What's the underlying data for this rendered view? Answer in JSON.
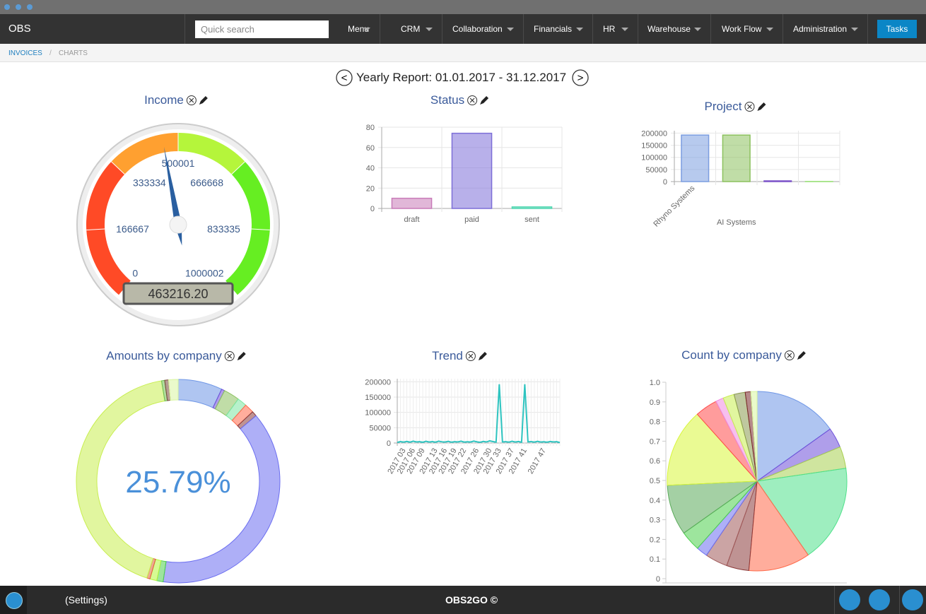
{
  "header": {
    "brand": "OBS",
    "search_placeholder": "Quick search",
    "nav": [
      "Menu",
      "CRM",
      "Collaboration",
      "Financials",
      "HR",
      "Warehouse",
      "Work Flow",
      "Administration"
    ],
    "tasks": "Tasks"
  },
  "breadcrumb": [
    "INVOICES",
    "/",
    "CHARTS"
  ],
  "report": {
    "prev": "<",
    "title": "Yearly Report: 01.01.2017 - 31.12.2017",
    "next": ">"
  },
  "chart_data": [
    {
      "type": "gauge",
      "title": "Income",
      "ylim": [
        0,
        1000002
      ],
      "yticks": [
        0,
        166667,
        333334,
        500001,
        666668,
        833335,
        1000002
      ],
      "bands": [
        {
          "from": 0,
          "to": 333334,
          "color": "#ff4a26"
        },
        {
          "from": 333334,
          "to": 500001,
          "color": "#ffa030"
        },
        {
          "from": 500001,
          "to": 666668,
          "color": "#b5f53b"
        },
        {
          "from": 666668,
          "to": 1000002,
          "color": "#66ee22"
        }
      ],
      "value": 463216.2,
      "value_label": "463216.20",
      "color": "#2a5fa0"
    },
    {
      "type": "bar",
      "title": "Status",
      "categories": [
        "draft",
        "paid",
        "sent"
      ],
      "values": [
        10,
        74,
        1.5
      ],
      "colors": [
        "#c87bb8",
        "#7d6fd8",
        "#4fd6b0"
      ],
      "ylim": [
        0,
        80
      ],
      "yticks": [
        0,
        20,
        40,
        60,
        80
      ],
      "grid": true
    },
    {
      "type": "bar",
      "title": "Project",
      "categories": [
        "Rhyno Systems",
        "AI Systems",
        null,
        null
      ],
      "values": [
        192000,
        192000,
        3000,
        500
      ],
      "colors": [
        "#7c9ee0",
        "#8cc15e",
        "#7b52c8",
        "#9be07a"
      ],
      "ylim": [
        0,
        210000
      ],
      "yticks": [
        0,
        50000,
        100000,
        150000,
        200000
      ],
      "grid": true
    },
    {
      "type": "doughnut",
      "title": "Amounts by company",
      "center_label": "25.79%",
      "values": [
        7,
        0.5,
        2.5,
        1.5,
        1.5,
        0.8,
        38.3,
        1,
        1.1,
        0.5,
        42.2,
        0.5,
        0.6,
        1.5
      ],
      "colors": [
        "#6e96e6",
        "#6d4fd8",
        "#8cc15e",
        "#7be6a0",
        "#ff6a4a",
        "#8b3a3a",
        "#6b6ef0",
        "#4cd04c",
        "#b5f53b",
        "#e0603a",
        "#c8ee50",
        "#6fbf50",
        "#7a4a3a",
        "#d8f5a0"
      ]
    },
    {
      "type": "line",
      "title": "Trend",
      "categories": [
        null,
        null,
        "2017 03",
        null,
        null,
        "2017 06",
        null,
        null,
        "2017 09",
        null,
        null,
        null,
        "2017 13",
        null,
        null,
        "2017 16",
        null,
        null,
        "2017 19",
        null,
        null,
        "2017 22",
        null,
        null,
        null,
        "2017 26",
        null,
        null,
        null,
        "2017 30",
        null,
        null,
        "2017 33",
        null,
        null,
        null,
        "2017 37",
        null,
        null,
        null,
        "2017 41",
        null,
        null,
        null,
        null,
        null,
        "2017 47",
        null,
        null,
        null,
        null,
        null
      ],
      "values": [
        2000,
        4500,
        3000,
        5200,
        2800,
        6000,
        3500,
        4200,
        2500,
        5800,
        3300,
        4700,
        2600,
        6100,
        3900,
        3100,
        5400,
        2700,
        4400,
        3600,
        5900,
        2900,
        4100,
        3200,
        6300,
        3800,
        2400,
        5100,
        3400,
        7200,
        4600,
        3000,
        192000,
        3500,
        4300,
        2800,
        5600,
        3100,
        4900,
        2600,
        192000,
        3700,
        4500,
        2900,
        5300,
        3300,
        4000,
        2700,
        5000,
        3600,
        4200,
        1500
      ],
      "color": "#2ec4c0",
      "ylim": [
        0,
        210000
      ],
      "yticks": [
        0,
        50000,
        100000,
        150000,
        200000
      ],
      "grid": true
    },
    {
      "type": "pie",
      "title": "Count by company",
      "values": [
        15,
        3.6,
        3.9,
        17.5,
        11,
        4,
        4,
        2,
        3.6,
        9,
        14,
        4,
        1.4,
        2,
        2,
        1,
        1.1
      ],
      "colors": [
        "#6e96e6",
        "#6d4fd8",
        "#a8cf50",
        "#4ee08a",
        "#ff6a4a",
        "#8b3a3a",
        "#a05a5a",
        "#6b6ef0",
        "#4cd04c",
        "#5aaa5a",
        "#d8f53b",
        "#ff4a4a",
        "#f08ae0",
        "#c8ee50",
        "#8a9a50",
        "#7a2a2a",
        "#d8f5a0"
      ],
      "ylim": [
        0,
        1
      ],
      "yticks": [
        0,
        0.1,
        0.2,
        0.3,
        0.4,
        0.5,
        0.6,
        0.7,
        0.8,
        0.9,
        {
          "value": 1,
          "label": "1.0"
        }
      ]
    }
  ],
  "footer": {
    "settings": "(Settings)",
    "brand": "OBS2GO ©"
  }
}
